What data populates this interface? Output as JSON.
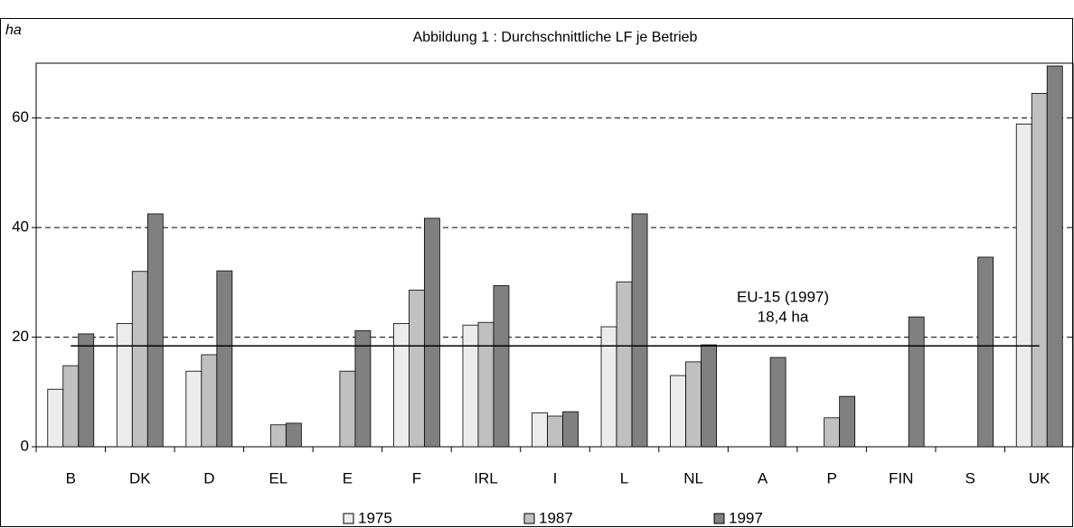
{
  "chart_data": {
    "type": "bar",
    "title": "Abbildung 1 : Durchschnittliche LF je Betrieb",
    "y_label": "ha",
    "categories": [
      "B",
      "DK",
      "D",
      "EL",
      "E",
      "F",
      "IRL",
      "I",
      "L",
      "NL",
      "A",
      "P",
      "FIN",
      "S",
      "UK"
    ],
    "series": [
      {
        "name": "1975",
        "color": "#ececec",
        "values": [
          10.5,
          22.5,
          13.8,
          null,
          null,
          22.5,
          22.2,
          6.2,
          21.9,
          13.0,
          null,
          null,
          null,
          null,
          58.9
        ]
      },
      {
        "name": "1987",
        "color": "#c0c0c0",
        "values": [
          14.8,
          32.0,
          16.8,
          4.0,
          13.8,
          28.6,
          22.7,
          5.6,
          30.1,
          15.5,
          null,
          5.3,
          null,
          null,
          64.5
        ]
      },
      {
        "name": "1997",
        "color": "#808080",
        "values": [
          20.6,
          42.5,
          32.1,
          4.3,
          21.2,
          41.7,
          29.4,
          6.4,
          42.5,
          18.6,
          16.3,
          9.2,
          23.7,
          34.6,
          69.5
        ]
      }
    ],
    "reference_line": {
      "value": 18.4,
      "labels": [
        "EU-15 (1997)",
        "18,4 ha"
      ]
    },
    "ylim": [
      0,
      70
    ],
    "yticks": [
      0,
      20,
      40,
      60
    ],
    "grid": true,
    "legend": "bottom"
  }
}
